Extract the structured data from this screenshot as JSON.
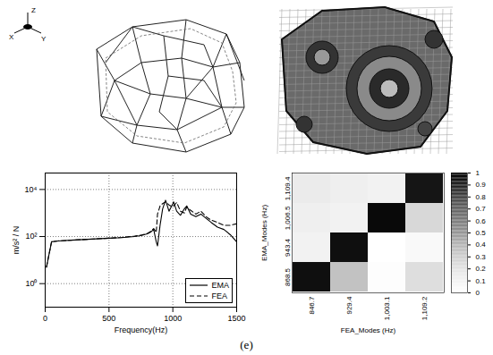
{
  "caption": "(e)",
  "coordinate_triad": {
    "labels": [
      "Z",
      "X",
      "Y"
    ]
  },
  "chart_data": [
    {
      "type": "line",
      "xlabel": "Frequency(Hz)",
      "ylabel": "m/s² / N",
      "x": [
        10,
        50,
        100,
        200,
        300,
        400,
        500,
        600,
        700,
        750,
        800,
        830,
        850,
        870,
        880,
        900,
        920,
        943,
        970,
        1000,
        1006,
        1030,
        1060,
        1090,
        1109,
        1140,
        1180,
        1220,
        1260,
        1300,
        1350,
        1400,
        1450,
        1500
      ],
      "series": [
        {
          "name": "EMA",
          "color": "#000000",
          "line_style": "solid",
          "values": [
            5,
            60,
            65,
            70,
            75,
            80,
            85,
            90,
            100,
            110,
            130,
            160,
            200,
            60,
            40,
            300,
            1500,
            3500,
            1200,
            2500,
            3000,
            1200,
            800,
            1500,
            2000,
            900,
            700,
            900,
            600,
            400,
            250,
            200,
            120,
            60
          ]
        },
        {
          "name": "FEA",
          "color": "#000000",
          "line_style": "dashed",
          "values": [
            5,
            60,
            65,
            70,
            75,
            80,
            85,
            92,
            105,
            115,
            135,
            170,
            220,
            150,
            900,
            2000,
            2500,
            3000,
            2200,
            1800,
            2000,
            2800,
            1200,
            1000,
            1800,
            1300,
            900,
            1200,
            700,
            500,
            400,
            300,
            300,
            350
          ]
        }
      ],
      "xlim": [
        0,
        1500
      ],
      "xticks": [
        0,
        500,
        1000,
        1500
      ],
      "ylim": [
        0.1,
        50000
      ],
      "yticks": [
        {
          "value": 1,
          "label": "10⁰"
        },
        {
          "value": 100,
          "label": "10²"
        },
        {
          "value": 10000,
          "label": "10⁴"
        }
      ],
      "log": "y",
      "grid": true,
      "legend": "lower right"
    },
    {
      "type": "heatmap",
      "xlabel": "FEA_Modes (Hz)",
      "ylabel": "EMA_Modes (Hz)",
      "x": [
        846.7,
        929.4,
        1003.1,
        1109.2
      ],
      "y": [
        868.5,
        943.4,
        1006.5,
        1109.4
      ],
      "values": [
        [
          0.95,
          0.35,
          0.02,
          0.22
        ],
        [
          0.1,
          0.95,
          0.0,
          0.05
        ],
        [
          0.12,
          0.1,
          0.97,
          0.25
        ],
        [
          0.15,
          0.12,
          0.1,
          0.93
        ]
      ],
      "color": "greys",
      "colorbar": {
        "range": [
          0,
          1
        ],
        "ticks": [
          0,
          0.1,
          0.2,
          0.3,
          0.4,
          0.5,
          0.6,
          0.7,
          0.8,
          0.9,
          1
        ]
      }
    }
  ]
}
